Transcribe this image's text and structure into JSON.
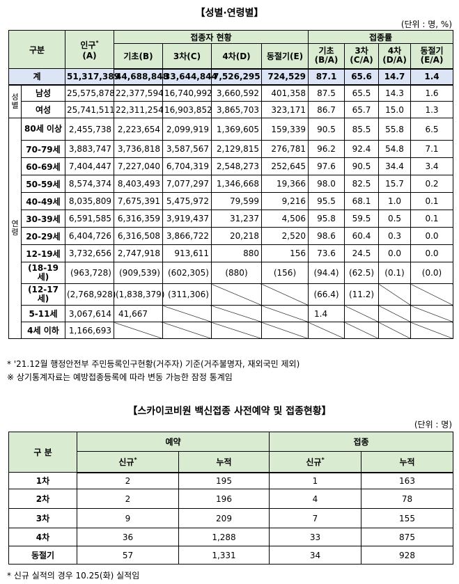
{
  "table1": {
    "title": "【성별·연령별】",
    "unit": "(단위 : 명, %)",
    "headers": {
      "category": "구분",
      "population": "인구",
      "population_mark": "*",
      "population_sub": "(A)",
      "status_group": "접종자 현황",
      "rate_group": "접종률",
      "status_cols": [
        "기초(B)",
        "3차(C)",
        "4차(D)",
        "동절기(E)"
      ],
      "rate_cols": [
        {
          "line1": "기초",
          "line2": "(B/A)"
        },
        {
          "line1": "3차",
          "line2": "(C/A)"
        },
        {
          "line1": "4차",
          "line2": "(D/A)"
        },
        {
          "line1": "동절기",
          "line2": "(E/A)"
        }
      ]
    },
    "total": {
      "label": "계",
      "values": [
        "51,317,389",
        "44,688,848",
        "33,644,844",
        "7,526,295",
        "724,529",
        "87.1",
        "65.6",
        "14.7",
        "1.4"
      ]
    },
    "sex_group": "성별",
    "sex_rows": [
      {
        "label": "남성",
        "values": [
          "25,575,878",
          "22,377,594",
          "16,740,992",
          "3,660,592",
          "401,358",
          "87.5",
          "65.5",
          "14.3",
          "1.6"
        ]
      },
      {
        "label": "여성",
        "values": [
          "25,741,511",
          "22,311,254",
          "16,903,852",
          "3,865,703",
          "323,171",
          "86.7",
          "65.7",
          "15.0",
          "1.3"
        ]
      }
    ],
    "age_group": "연령",
    "age_rows": [
      {
        "label": "80세 이상",
        "values": [
          "2,455,738",
          "2,223,654",
          "2,099,919",
          "1,369,605",
          "159,339",
          "90.5",
          "85.5",
          "55.8",
          "6.5"
        ]
      },
      {
        "label": "70-79세",
        "values": [
          "3,883,747",
          "3,736,818",
          "3,587,567",
          "2,129,815",
          "276,781",
          "96.2",
          "92.4",
          "54.8",
          "7.1"
        ]
      },
      {
        "label": "60-69세",
        "values": [
          "7,404,447",
          "7,227,040",
          "6,704,319",
          "2,548,273",
          "252,645",
          "97.6",
          "90.5",
          "34.4",
          "3.4"
        ]
      },
      {
        "label": "50-59세",
        "values": [
          "8,574,374",
          "8,403,493",
          "7,077,297",
          "1,346,668",
          "19,366",
          "98.0",
          "82.5",
          "15.7",
          "0.2"
        ]
      },
      {
        "label": "40-49세",
        "values": [
          "8,035,809",
          "7,675,391",
          "5,475,972",
          "79,599",
          "9,216",
          "95.5",
          "68.1",
          "1.0",
          "0.1"
        ]
      },
      {
        "label": "30-39세",
        "values": [
          "6,591,585",
          "6,316,359",
          "3,919,437",
          "31,237",
          "4,506",
          "95.8",
          "59.5",
          "0.5",
          "0.1"
        ]
      },
      {
        "label": "20-29세",
        "values": [
          "6,404,726",
          "6,316,508",
          "3,866,722",
          "20,218",
          "2,520",
          "98.6",
          "60.4",
          "0.3",
          "0.0"
        ]
      },
      {
        "label": "12-19세",
        "values": [
          "3,732,656",
          "2,747,918",
          "913,611",
          "880",
          "156",
          "73.6",
          "24.5",
          "0.0",
          "0.0"
        ]
      }
    ],
    "sub_rows": {
      "label_a": "(18-19세)",
      "label_b": "(12-17세)",
      "values_a": [
        "(963,728)",
        "(909,539)",
        "(602,305)",
        "(880)",
        "(156)",
        "(94.4)",
        "(62.5)",
        "(0.1)",
        "(0.0)"
      ],
      "values_b": [
        "(2,768,928)",
        "(1,838,379)",
        "(311,306)",
        "(66.4)",
        "(11.2)"
      ]
    },
    "row_5_11": {
      "label": "5-11세",
      "population": "3,067,614",
      "basic": "41,667",
      "rate": "1.4"
    },
    "row_under4": {
      "label": "4세 이하",
      "population": "1,166,693"
    },
    "notes": [
      "* '21.12월 행정안전부 주민등록인구현황(거주자) 기준(거주불명자, 재외국민 제외)",
      "※ 상기통계자료는 예방접종등록에 따라 변동 가능한 잠정 통계임"
    ]
  },
  "table2": {
    "title": "【스카이코비원 백신접종 사전예약 및 접종현황】",
    "unit": "(단위 : 명)",
    "headers": {
      "category": "구 분",
      "reservation": "예약",
      "vaccination": "접종",
      "new": "신규",
      "new_mark": "*",
      "cumulative": "누적"
    },
    "rows": [
      {
        "label": "1차",
        "values": [
          "2",
          "195",
          "1",
          "163"
        ]
      },
      {
        "label": "2차",
        "values": [
          "2",
          "196",
          "4",
          "78"
        ]
      },
      {
        "label": "3차",
        "values": [
          "9",
          "209",
          "7",
          "155"
        ]
      },
      {
        "label": "4차",
        "values": [
          "36",
          "1,288",
          "33",
          "875"
        ]
      },
      {
        "label": "동절기",
        "values": [
          "57",
          "1,331",
          "34",
          "928"
        ]
      }
    ],
    "note": "* 신규 실적의 경우 10.25(화) 실적임"
  }
}
